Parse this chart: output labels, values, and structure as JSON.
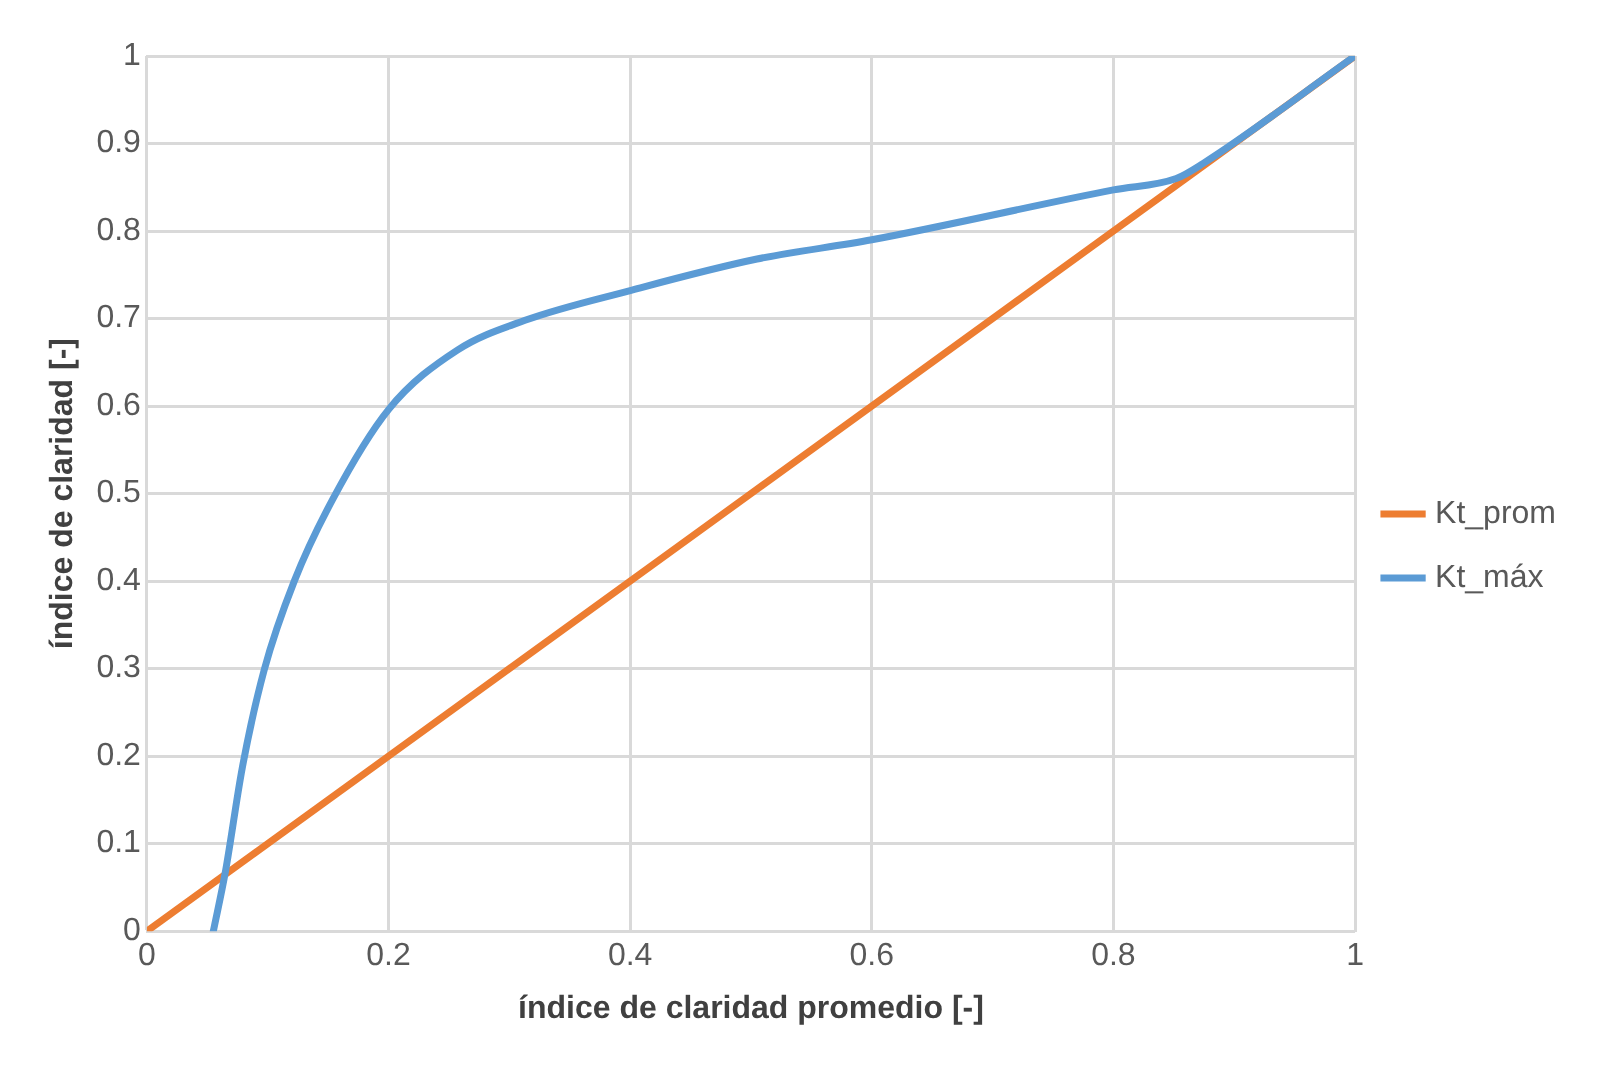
{
  "chart_data": {
    "type": "line",
    "xlabel": "índice de claridad promedio [-]",
    "ylabel": "índice de claridad [-]",
    "xlim": [
      0,
      1
    ],
    "xticks": [
      0,
      0.2,
      0.4,
      0.6,
      0.8,
      1
    ],
    "ylim": [
      0,
      1
    ],
    "yticks": [
      0,
      0.1,
      0.2,
      0.3,
      0.4,
      0.5,
      0.6,
      0.7,
      0.8,
      0.9,
      1
    ],
    "grid": true,
    "legend": "right",
    "marker": "none",
    "line_style": "solid",
    "series": [
      {
        "name": "Kt_prom",
        "color": "#ed7d31",
        "x": [
          0,
          1
        ],
        "values": [
          0,
          1
        ]
      },
      {
        "name": "Kt_máx",
        "color": "#5b9bd5",
        "x": [
          0.055,
          0.065,
          0.079,
          0.097,
          0.122,
          0.154,
          0.2,
          0.257,
          0.313,
          0.4,
          0.505,
          0.6,
          0.8,
          0.852,
          0.874,
          1
        ],
        "values": [
          0,
          0.068,
          0.187,
          0.298,
          0.4,
          0.494,
          0.596,
          0.664,
          0.698,
          0.732,
          0.768,
          0.79,
          0.847,
          0.86,
          0.877,
          1
        ]
      }
    ]
  }
}
